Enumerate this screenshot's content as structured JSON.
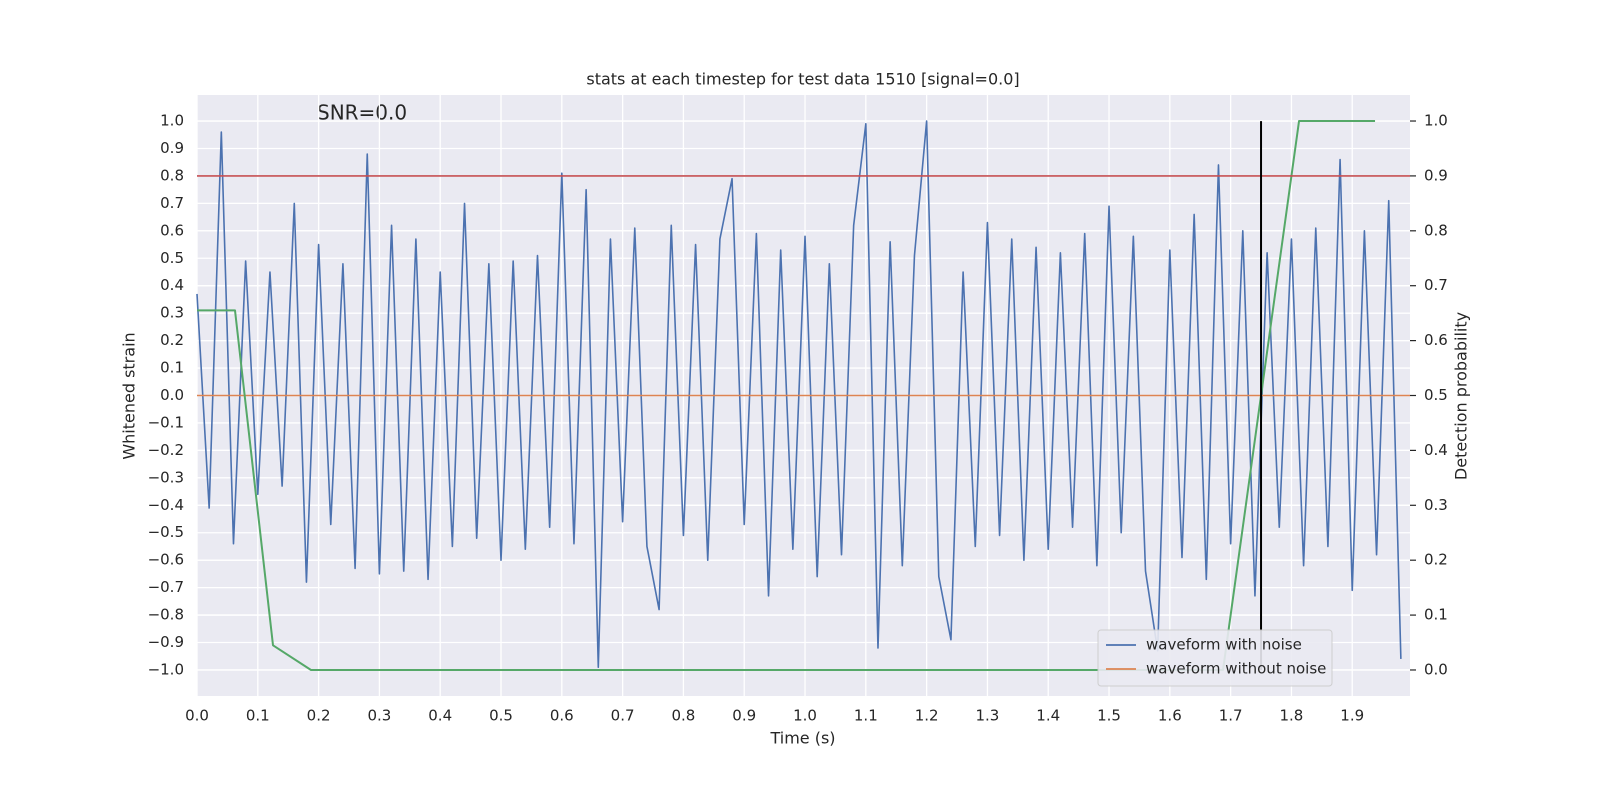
{
  "chart_data": {
    "type": "line",
    "title": "stats at each timestep for test data 1510 [signal=0.0]",
    "annotation": "SNR=0.0",
    "x_label": "Time (s)",
    "y_label": "Whitened strain",
    "y2_label": "Detection probability",
    "xlim": [
      0,
      1.995
    ],
    "xticks": [
      {
        "value": 0,
        "label": "0.0"
      },
      0.1,
      0.2,
      0.3,
      0.4,
      0.5,
      0.6,
      0.7,
      0.8,
      0.9,
      {
        "value": 1,
        "label": "1.0"
      },
      1.1,
      1.2,
      1.3,
      1.4,
      1.5,
      1.6,
      1.7,
      1.8,
      1.9
    ],
    "ylim": [
      -1.095,
      1.095
    ],
    "yticks": [
      {
        "value": -1,
        "label": "−1.0"
      },
      {
        "value": -0.9,
        "label": "−0.9"
      },
      {
        "value": -0.8,
        "label": "−0.8"
      },
      {
        "value": -0.7,
        "label": "−0.7"
      },
      {
        "value": -0.6,
        "label": "−0.6"
      },
      {
        "value": -0.5,
        "label": "−0.5"
      },
      {
        "value": -0.4,
        "label": "−0.4"
      },
      {
        "value": -0.3,
        "label": "−0.3"
      },
      {
        "value": -0.2,
        "label": "−0.2"
      },
      {
        "value": -0.1,
        "label": "−0.1"
      },
      {
        "value": 0,
        "label": "0.0"
      },
      0.1,
      0.2,
      0.3,
      0.4,
      0.5,
      0.6,
      0.7,
      0.8,
      0.9,
      {
        "value": 1,
        "label": "1.0"
      }
    ],
    "y2lim": [
      -0.0474,
      1.0474
    ],
    "y2ticks": [
      {
        "value": 0,
        "label": "0.0"
      },
      0.1,
      0.2,
      0.3,
      0.4,
      0.5,
      0.6,
      0.7,
      0.8,
      0.9,
      {
        "value": 1,
        "label": "1.0"
      }
    ],
    "grid": true,
    "legend": "lower right",
    "series": [
      {
        "name": "waveform with noise",
        "color": "#4c72b0",
        "x": [
          0,
          0.02,
          0.04,
          0.06,
          0.08,
          0.1,
          0.12,
          0.14,
          0.16,
          0.18,
          0.2,
          0.22,
          0.24,
          0.26,
          0.28,
          0.3,
          0.32,
          0.34,
          0.36,
          0.38,
          0.4,
          0.42,
          0.44,
          0.46,
          0.48,
          0.5,
          0.52,
          0.54,
          0.56,
          0.58,
          0.6,
          0.62,
          0.64,
          0.66,
          0.68,
          0.7,
          0.72,
          0.74,
          0.76,
          0.78,
          0.8,
          0.82,
          0.84,
          0.86,
          0.88,
          0.9,
          0.92,
          0.94,
          0.96,
          0.98,
          1,
          1.02,
          1.04,
          1.06,
          1.08,
          1.1,
          1.12,
          1.14,
          1.16,
          1.18,
          1.2,
          1.22,
          1.24,
          1.26,
          1.28,
          1.3,
          1.32,
          1.34,
          1.36,
          1.38,
          1.4,
          1.42,
          1.44,
          1.46,
          1.48,
          1.5,
          1.52,
          1.54,
          1.56,
          1.58,
          1.6,
          1.62,
          1.64,
          1.66,
          1.68,
          1.7,
          1.72,
          1.74,
          1.76,
          1.78,
          1.8,
          1.82,
          1.84,
          1.86,
          1.88,
          1.9,
          1.92,
          1.94,
          1.96,
          1.98
        ],
        "values": [
          0.37,
          -0.41,
          0.96,
          -0.54,
          0.49,
          -0.36,
          0.45,
          -0.33,
          0.7,
          -0.68,
          0.55,
          -0.47,
          0.48,
          -0.63,
          0.88,
          -0.65,
          0.62,
          -0.64,
          0.57,
          -0.67,
          0.45,
          -0.55,
          0.7,
          -0.52,
          0.48,
          -0.6,
          0.49,
          -0.56,
          0.51,
          -0.48,
          0.81,
          -0.54,
          0.75,
          -0.99,
          0.57,
          -0.46,
          0.61,
          -0.55,
          -0.78,
          0.62,
          -0.51,
          0.55,
          -0.6,
          0.57,
          0.79,
          -0.47,
          0.59,
          -0.73,
          0.53,
          -0.56,
          0.58,
          -0.66,
          0.48,
          -0.58,
          0.62,
          0.99,
          -0.92,
          0.56,
          -0.62,
          0.51,
          1.0,
          -0.66,
          -0.89,
          0.45,
          -0.55,
          0.63,
          -0.51,
          0.57,
          -0.6,
          0.54,
          -0.56,
          0.52,
          -0.48,
          0.59,
          -0.62,
          0.69,
          -0.5,
          0.58,
          -0.64,
          -0.93,
          0.53,
          -0.59,
          0.66,
          -0.67,
          0.84,
          -0.54,
          0.6,
          -0.73,
          0.52,
          -0.48,
          0.57,
          -0.62,
          0.61,
          -0.55,
          0.86,
          -0.71,
          0.6,
          -0.58,
          0.71,
          -0.96
        ]
      },
      {
        "name": "waveform without noise",
        "color": "#dd8452",
        "x": [
          0,
          1.995
        ],
        "values": [
          0,
          0
        ]
      },
      {
        "color": "#55a868",
        "axis": "y2",
        "x": [
          0,
          0.0625,
          0.125,
          0.1875,
          1.6875,
          1.8125,
          1.9375
        ],
        "values": [
          0.655,
          0.655,
          0.045,
          0,
          0,
          1,
          1
        ]
      }
    ],
    "hlines": [
      {
        "y": 0.8,
        "color": "#c44e52"
      }
    ],
    "vlines": [
      {
        "x": 1.75,
        "color": "#000000"
      }
    ]
  }
}
